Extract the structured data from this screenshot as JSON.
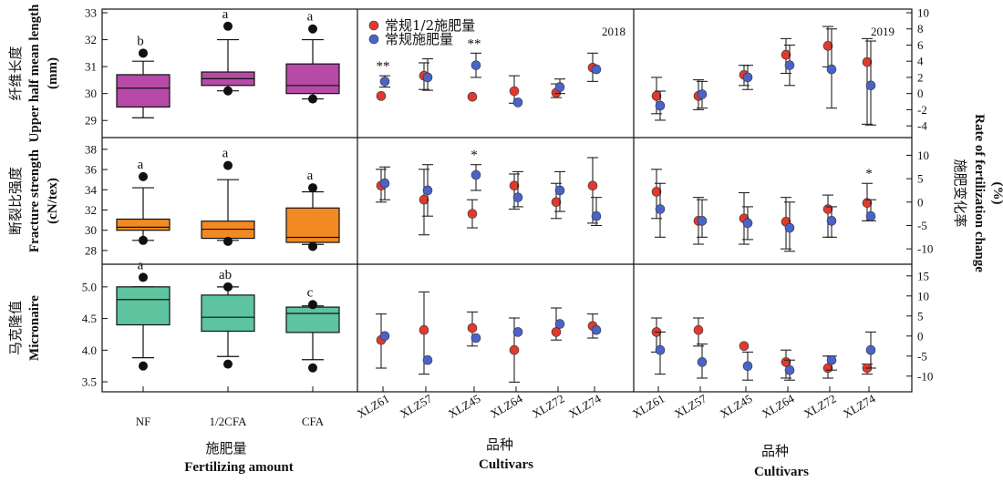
{
  "chart_data": {
    "type": "composite",
    "colors": {
      "nf": "#b64aa6",
      "half": "#f28a23",
      "cfa": "#5ec4a0",
      "red_dot": "#e03a2f",
      "blue_dot": "#4b63c8",
      "outlier": "#111111"
    },
    "box_panels": [
      {
        "ylabel_cn": "纤维长度",
        "ylabel_en": "Upper half mean length",
        "unit": "(mm)",
        "ylim": [
          28.5,
          33
        ],
        "yticks": [
          "29",
          "30",
          "31",
          "32",
          "33"
        ],
        "color": "#b64aa6",
        "boxes": [
          {
            "q1": 29.5,
            "median": 30.2,
            "q3": 30.7,
            "wlo": 29.1,
            "whi": 31.2,
            "outliers": [
              31.5
            ],
            "letter": "b"
          },
          {
            "q1": 30.3,
            "median": 30.55,
            "q3": 30.8,
            "wlo": 30.1,
            "whi": 32.0,
            "outliers": [
              32.5,
              30.1
            ],
            "letter": "a"
          },
          {
            "q1": 30.0,
            "median": 30.3,
            "q3": 31.1,
            "wlo": 29.8,
            "whi": 32.0,
            "outliers": [
              32.4,
              29.8
            ],
            "letter": "a"
          }
        ]
      },
      {
        "ylabel_cn": "断裂比强度",
        "ylabel_en": "Fracture strength",
        "unit": "(cN/tex)",
        "ylim": [
          27,
          38.8
        ],
        "yticks": [
          "28",
          "30",
          "32",
          "34",
          "36",
          "38"
        ],
        "color": "#f28a23",
        "boxes": [
          {
            "q1": 30.0,
            "median": 30.3,
            "q3": 31.1,
            "wlo": 29.0,
            "whi": 34.2,
            "outliers": [
              35.3,
              29.0
            ],
            "letter": "a"
          },
          {
            "q1": 29.2,
            "median": 30.1,
            "q3": 30.9,
            "wlo": 29.0,
            "whi": 35.0,
            "outliers": [
              36.4,
              28.9
            ],
            "letter": "a"
          },
          {
            "q1": 28.8,
            "median": 29.3,
            "q3": 32.2,
            "wlo": 28.6,
            "whi": 33.8,
            "outliers": [
              34.2,
              28.4
            ],
            "letter": "a"
          }
        ]
      },
      {
        "ylabel_cn": "马克隆值",
        "ylabel_en": "Micronaire",
        "unit": "",
        "ylim": [
          3.4,
          5.3
        ],
        "yticks": [
          "3.5",
          "4.0",
          "4.5",
          "5.0"
        ],
        "color": "#5ec4a0",
        "boxes": [
          {
            "q1": 4.4,
            "median": 4.8,
            "q3": 5.0,
            "wlo": 3.88,
            "whi": 5.0,
            "outliers": [
              5.15,
              3.75
            ],
            "letter": "a"
          },
          {
            "q1": 4.3,
            "median": 4.52,
            "q3": 4.87,
            "wlo": 3.9,
            "whi": 5.0,
            "outliers": [
              5.0,
              3.78
            ],
            "letter": "ab"
          },
          {
            "q1": 4.28,
            "median": 4.58,
            "q3": 4.68,
            "wlo": 3.85,
            "whi": 4.7,
            "outliers": [
              4.72,
              3.72
            ],
            "letter": "c"
          }
        ]
      }
    ],
    "box_categories": [
      "NF",
      "1/2CFA",
      "CFA"
    ],
    "box_xlabel_cn": "施肥量",
    "box_xlabel_en": "Fertilizing amount",
    "legend": [
      "常规1/2施肥量",
      "常规施肥量"
    ],
    "years": [
      "2018",
      "2019"
    ],
    "cultivars": [
      "XLZ61",
      "XLZ57",
      "XLZ45",
      "XLZ64",
      "XLZ72",
      "XLZ74"
    ],
    "cultivar_xlabel_cn": "品种",
    "cultivar_xlabel_en": "Cultivars",
    "right_ylabel_cn": "施肥变化率",
    "right_ylabel_en": "Rate of fertilization change",
    "right_unit": "(%)",
    "rate_panels": [
      {
        "ylim": [
          -5,
          10
        ],
        "yticks": [
          "-4",
          "-2",
          "0",
          "2",
          "4",
          "6",
          "8",
          "10"
        ],
        "2018": {
          "half": [
            [
              -0.3,
              null,
              null
            ],
            [
              2.2,
              0.5,
              3.8
            ],
            [
              -0.4,
              null,
              null
            ],
            [
              0.3,
              -1.2,
              2.2
            ],
            [
              0.1,
              -0.5,
              1.2
            ],
            [
              3.2,
              1.5,
              5.0
            ]
          ],
          "full": [
            [
              1.5,
              0.8,
              2.2
            ],
            [
              2.0,
              0.4,
              4.3
            ],
            [
              3.5,
              2.0,
              5.0
            ],
            [
              -1.1,
              null,
              null
            ],
            [
              0.8,
              0.0,
              1.8
            ],
            [
              3.0,
              null,
              null
            ]
          ],
          "sig": [
            "**",
            "",
            "**",
            "",
            "",
            ""
          ]
        },
        "2019": {
          "half": [
            [
              -0.3,
              -2.5,
              2.0
            ],
            [
              -0.3,
              -2.0,
              1.7
            ],
            [
              2.3,
              1.0,
              3.5
            ],
            [
              4.8,
              2.5,
              6.8
            ],
            [
              5.9,
              3.3,
              8.3
            ],
            [
              3.9,
              -3.8,
              6.8
            ]
          ],
          "full": [
            [
              -1.5,
              -3.3,
              0.3
            ],
            [
              -0.1,
              -1.8,
              1.5
            ],
            [
              2.0,
              0.5,
              3.5
            ],
            [
              3.5,
              1.0,
              6.0
            ],
            [
              3.0,
              -1.8,
              8.0
            ],
            [
              1.0,
              -3.9,
              6.5
            ]
          ],
          "sig": [
            "",
            "",
            "",
            "",
            "",
            ""
          ]
        }
      },
      {
        "ylim": [
          -12.5,
          13
        ],
        "yticks": [
          "-10",
          "-5",
          "0",
          "5",
          "10"
        ],
        "2018": {
          "half": [
            [
              3.5,
              0.0,
              7.0
            ],
            [
              0.5,
              -7.0,
              7.0
            ],
            [
              -2.5,
              -5.5,
              0.5
            ],
            [
              3.5,
              -1.5,
              6.0
            ],
            [
              0.0,
              -3.5,
              4.0
            ],
            [
              3.5,
              -4.5,
              9.5
            ]
          ],
          "full": [
            [
              4.0,
              0.5,
              7.5
            ],
            [
              2.5,
              -3.0,
              8.0
            ],
            [
              5.8,
              2.5,
              8.0
            ],
            [
              1.0,
              -1.0,
              6.5
            ],
            [
              2.5,
              -2.0,
              6.5
            ],
            [
              -3.0,
              -5.0,
              1.0
            ]
          ],
          "sig": [
            "",
            "",
            "*",
            "",
            "",
            ""
          ]
        },
        "2019": {
          "half": [
            [
              2.2,
              -3.5,
              7.0
            ],
            [
              -4.0,
              -9.0,
              1.0
            ],
            [
              -3.5,
              -9.0,
              2.0
            ],
            [
              -4.2,
              -10.0,
              1.0
            ],
            [
              -1.5,
              -7.5,
              1.5
            ],
            [
              -0.2,
              -4.0,
              4.0
            ]
          ],
          "full": [
            [
              -1.5,
              -7.5,
              4.0
            ],
            [
              -4.0,
              -7.5,
              0.5
            ],
            [
              -4.5,
              -8.0,
              -1.0
            ],
            [
              -5.5,
              -10.5,
              0.0
            ],
            [
              -4.0,
              -7.5,
              -1.0
            ],
            [
              -3.0,
              -4.0,
              0.5
            ]
          ],
          "sig": [
            "",
            "",
            "",
            "",
            "",
            "*"
          ]
        }
      },
      {
        "ylim": [
          -13,
          17
        ],
        "yticks": [
          "-10",
          "-5",
          "0",
          "5",
          "10",
          "15"
        ],
        "2018": {
          "half": [
            [
              -1.0,
              -8.0,
              5.5
            ],
            [
              1.5,
              -9.5,
              11.0
            ],
            [
              2.0,
              -2.5,
              6.0
            ],
            [
              -3.5,
              -11.5,
              4.5
            ],
            [
              1.0,
              -1.0,
              7.0
            ],
            [
              2.5,
              -0.5,
              5.5
            ]
          ],
          "full": [
            [
              0.0,
              null,
              null
            ],
            [
              -6.0,
              null,
              null
            ],
            [
              -0.5,
              null,
              null
            ],
            [
              1.0,
              null,
              null
            ],
            [
              3.0,
              null,
              null
            ],
            [
              1.5,
              null,
              null
            ]
          ],
          "sig": [
            "",
            "",
            "",
            "",
            "",
            ""
          ]
        },
        "2019": {
          "half": [
            [
              1.0,
              -4.0,
              4.5
            ],
            [
              1.5,
              -2.5,
              4.5
            ],
            [
              -2.5,
              null,
              null
            ],
            [
              -6.5,
              -10.5,
              -3.5
            ],
            [
              -8.0,
              -10.5,
              -5.0
            ],
            [
              -8.0,
              -9.5,
              -7.0
            ]
          ],
          "full": [
            [
              -3.5,
              -9.5,
              1.0
            ],
            [
              -6.5,
              -10.5,
              -2.0
            ],
            [
              -7.5,
              -11.0,
              -4.0
            ],
            [
              -8.5,
              -11.0,
              -6.0
            ],
            [
              -6.0,
              -8.5,
              -5.0
            ],
            [
              -3.5,
              -8.0,
              1.0
            ]
          ],
          "sig": [
            "",
            "",
            "",
            "",
            "",
            ""
          ]
        }
      }
    ]
  }
}
